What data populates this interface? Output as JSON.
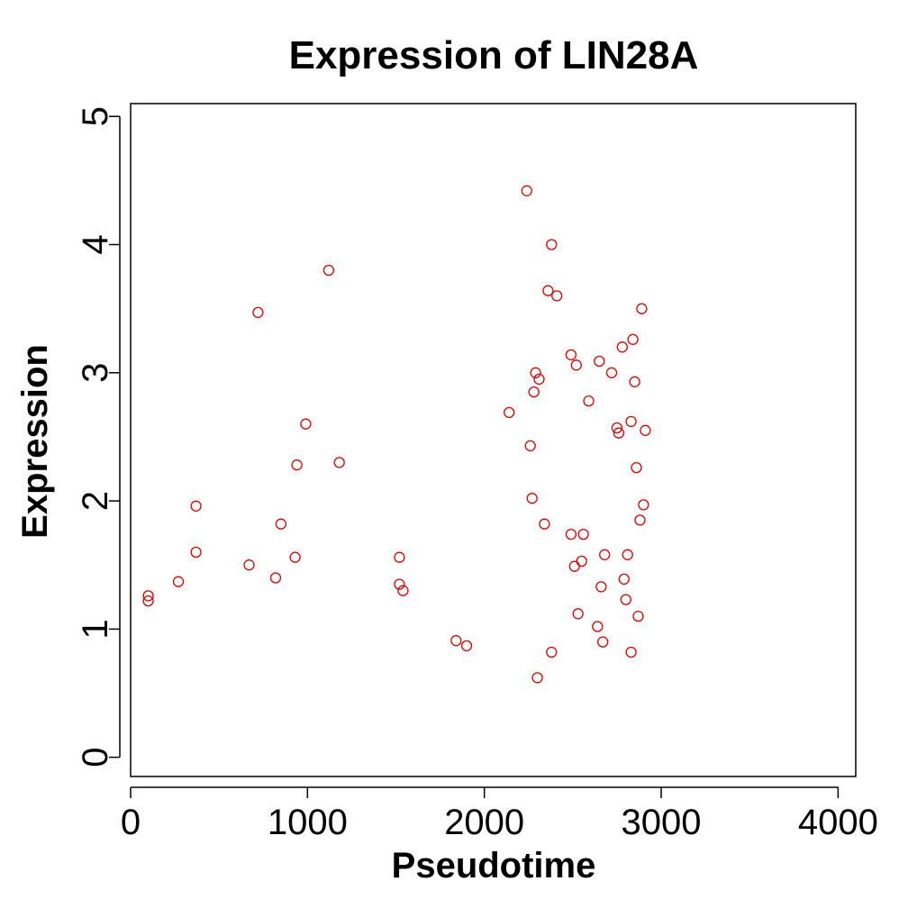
{
  "chart_data": {
    "type": "scatter",
    "title": "Expression of LIN28A",
    "xlabel": "Pseudotime",
    "ylabel": "Expression",
    "xlim": [
      0,
      4100
    ],
    "ylim": [
      -0.15,
      5.1
    ],
    "xticks": [
      0,
      1000,
      2000,
      3000,
      4000
    ],
    "yticks": [
      0,
      1,
      2,
      3,
      4,
      5
    ],
    "xtick_labels": [
      "0",
      "1000",
      "2000",
      "3000",
      "4000"
    ],
    "ytick_labels": [
      "0",
      "1",
      "2",
      "3",
      "4",
      "5"
    ],
    "grid": false,
    "legend": "none",
    "marker_color": "#dd0000",
    "series": [
      {
        "points": [
          [
            100,
            1.26
          ],
          [
            100,
            1.22
          ],
          [
            270,
            1.37
          ],
          [
            370,
            1.96
          ],
          [
            370,
            1.6
          ],
          [
            670,
            1.5
          ],
          [
            720,
            3.47
          ],
          [
            820,
            1.4
          ],
          [
            850,
            1.82
          ],
          [
            930,
            1.56
          ],
          [
            940,
            2.28
          ],
          [
            990,
            2.6
          ],
          [
            1120,
            3.8
          ],
          [
            1180,
            2.3
          ],
          [
            1520,
            1.35
          ],
          [
            1520,
            1.56
          ],
          [
            1540,
            1.3
          ],
          [
            1840,
            0.91
          ],
          [
            1900,
            0.87
          ],
          [
            2140,
            2.69
          ],
          [
            2240,
            4.42
          ],
          [
            2260,
            2.43
          ],
          [
            2270,
            2.02
          ],
          [
            2280,
            2.85
          ],
          [
            2290,
            3.0
          ],
          [
            2300,
            0.62
          ],
          [
            2310,
            2.95
          ],
          [
            2340,
            1.82
          ],
          [
            2360,
            3.64
          ],
          [
            2380,
            4.0
          ],
          [
            2380,
            0.82
          ],
          [
            2410,
            3.6
          ],
          [
            2490,
            1.74
          ],
          [
            2490,
            3.14
          ],
          [
            2510,
            1.49
          ],
          [
            2520,
            3.06
          ],
          [
            2530,
            1.12
          ],
          [
            2550,
            1.53
          ],
          [
            2560,
            1.74
          ],
          [
            2590,
            2.78
          ],
          [
            2640,
            1.02
          ],
          [
            2650,
            3.09
          ],
          [
            2660,
            1.33
          ],
          [
            2670,
            0.9
          ],
          [
            2680,
            1.58
          ],
          [
            2720,
            3.0
          ],
          [
            2750,
            2.57
          ],
          [
            2760,
            2.53
          ],
          [
            2780,
            3.2
          ],
          [
            2790,
            1.39
          ],
          [
            2800,
            1.23
          ],
          [
            2810,
            1.58
          ],
          [
            2830,
            2.62
          ],
          [
            2830,
            0.82
          ],
          [
            2840,
            3.26
          ],
          [
            2850,
            2.93
          ],
          [
            2860,
            2.26
          ],
          [
            2870,
            1.1
          ],
          [
            2880,
            1.85
          ],
          [
            2890,
            3.5
          ],
          [
            2900,
            1.97
          ],
          [
            2910,
            2.55
          ]
        ]
      }
    ]
  }
}
